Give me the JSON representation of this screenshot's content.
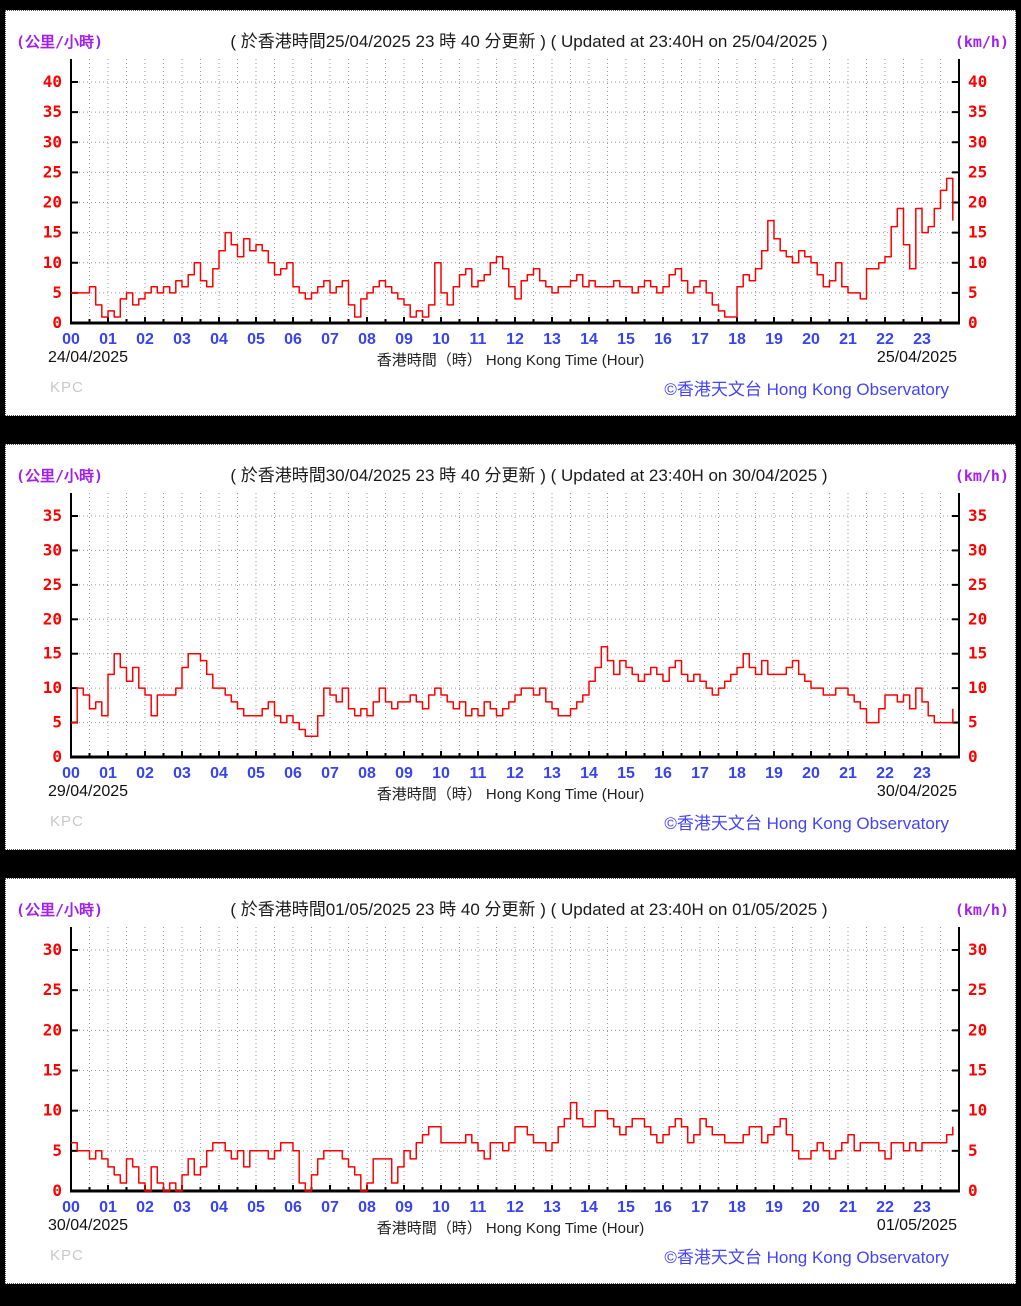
{
  "colors": {
    "background": "#000000",
    "panel": "#ffffff",
    "series_line": "#ff0000",
    "y_tick_labels": "#ff0000",
    "x_tick_labels": "#3743f0",
    "unit_labels": "#a020f0",
    "copyright": "#4343ff",
    "watermark": "#c9c9c9",
    "grid": "#999999"
  },
  "chart_data": [
    {
      "type": "line",
      "unit_left": "(公里/小時)",
      "unit_right": "(km/h)",
      "title": "( 於香港時間25/04/2025 23 時 40 分更新 ) ( Updated at 23:40H on 25/04/2025 )",
      "xlabel": "香港時間（時） Hong Kong Time (Hour)",
      "date_left": "24/04/2025",
      "date_right": "25/04/2025",
      "watermark": "KPC",
      "copyright": "©香港天文台 Hong Kong Observatory",
      "ylim": [
        0,
        40
      ],
      "ytick_step": 5,
      "x_hours": [
        "00",
        "01",
        "02",
        "03",
        "04",
        "05",
        "06",
        "07",
        "08",
        "09",
        "10",
        "11",
        "12",
        "13",
        "14",
        "15",
        "16",
        "17",
        "18",
        "19",
        "20",
        "21",
        "22",
        "23"
      ],
      "interval_minutes": 10,
      "grid": "dotted",
      "values": [
        5,
        5,
        5,
        6,
        3,
        1,
        2,
        1,
        4,
        5,
        3,
        4,
        5,
        6,
        5,
        6,
        5,
        7,
        6,
        8,
        10,
        7,
        6,
        9,
        12,
        15,
        13,
        11,
        14,
        12,
        13,
        12,
        10,
        8,
        9,
        10,
        6,
        5,
        4,
        5,
        6,
        7,
        5,
        6,
        7,
        3,
        1,
        4,
        5,
        6,
        7,
        6,
        5,
        4,
        3,
        1,
        2,
        1,
        3,
        10,
        5,
        3,
        6,
        8,
        9,
        6,
        7,
        8,
        10,
        11,
        9,
        6,
        4,
        7,
        8,
        9,
        7,
        6,
        5,
        6,
        6,
        7,
        8,
        6,
        7,
        6,
        6,
        6,
        7,
        6,
        6,
        5,
        6,
        7,
        6,
        5,
        6,
        8,
        9,
        7,
        5,
        6,
        7,
        5,
        3,
        2,
        1,
        1,
        6,
        8,
        7,
        9,
        12,
        17,
        14,
        12,
        11,
        10,
        12,
        11,
        10,
        8,
        6,
        7,
        10,
        6,
        5,
        5,
        4,
        9,
        9,
        10,
        11,
        16,
        19,
        13,
        9,
        19,
        15,
        16,
        19,
        22,
        24,
        17
      ]
    },
    {
      "type": "line",
      "unit_left": "(公里/小時)",
      "unit_right": "(km/h)",
      "title": "( 於香港時間30/04/2025 23 時 40 分更新 ) ( Updated at 23:40H on 30/04/2025 )",
      "xlabel": "香港時間（時） Hong Kong Time (Hour)",
      "date_left": "29/04/2025",
      "date_right": "30/04/2025",
      "watermark": "KPC",
      "copyright": "©香港天文台 Hong Kong Observatory",
      "ylim": [
        0,
        35
      ],
      "ytick_step": 5,
      "x_hours": [
        "00",
        "01",
        "02",
        "03",
        "04",
        "05",
        "06",
        "07",
        "08",
        "09",
        "10",
        "11",
        "12",
        "13",
        "14",
        "15",
        "16",
        "17",
        "18",
        "19",
        "20",
        "21",
        "22",
        "23"
      ],
      "interval_minutes": 10,
      "grid": "dotted",
      "values": [
        5,
        10,
        9,
        7,
        8,
        6,
        12,
        15,
        13,
        11,
        13,
        10,
        9,
        6,
        9,
        9,
        9,
        10,
        13,
        15,
        15,
        14,
        12,
        10,
        10,
        9,
        8,
        7,
        6,
        6,
        6,
        7,
        8,
        6,
        5,
        6,
        5,
        4,
        3,
        3,
        6,
        10,
        9,
        8,
        10,
        7,
        6,
        7,
        6,
        8,
        10,
        8,
        7,
        8,
        8,
        9,
        8,
        7,
        9,
        10,
        9,
        8,
        7,
        8,
        6,
        7,
        6,
        8,
        7,
        6,
        7,
        8,
        9,
        10,
        10,
        9,
        10,
        8,
        7,
        6,
        6,
        7,
        8,
        9,
        11,
        13,
        16,
        14,
        12,
        14,
        13,
        12,
        11,
        12,
        13,
        12,
        11,
        13,
        14,
        12,
        11,
        12,
        11,
        10,
        9,
        10,
        11,
        12,
        13,
        15,
        13,
        12,
        14,
        12,
        12,
        12,
        13,
        14,
        12,
        11,
        10,
        10,
        9,
        9,
        10,
        10,
        9,
        8,
        7,
        5,
        5,
        7,
        9,
        9,
        8,
        9,
        7,
        10,
        8,
        6,
        5,
        5,
        5,
        7
      ]
    },
    {
      "type": "line",
      "unit_left": "(公里/小時)",
      "unit_right": "(km/h)",
      "title": "( 於香港時間01/05/2025 23 時 40 分更新 ) ( Updated at 23:40H on 01/05/2025 )",
      "xlabel": "香港時間（時） Hong Kong Time (Hour)",
      "date_left": "30/04/2025",
      "date_right": "01/05/2025",
      "watermark": "KPC",
      "copyright": "©香港天文台 Hong Kong Observatory",
      "ylim": [
        0,
        30
      ],
      "ytick_step": 5,
      "x_hours": [
        "00",
        "01",
        "02",
        "03",
        "04",
        "05",
        "06",
        "07",
        "08",
        "09",
        "10",
        "11",
        "12",
        "13",
        "14",
        "15",
        "16",
        "17",
        "18",
        "19",
        "20",
        "21",
        "22",
        "23"
      ],
      "interval_minutes": 10,
      "grid": "dotted",
      "values": [
        6,
        5,
        5,
        4,
        5,
        4,
        3,
        2,
        1,
        4,
        3,
        1,
        0,
        3,
        1,
        0,
        1,
        0,
        2,
        4,
        2,
        3,
        5,
        6,
        6,
        5,
        4,
        5,
        3,
        5,
        5,
        5,
        4,
        5,
        6,
        6,
        5,
        1,
        0,
        2,
        4,
        5,
        5,
        5,
        4,
        3,
        2,
        0,
        1,
        4,
        4,
        4,
        1,
        3,
        5,
        4,
        6,
        7,
        8,
        8,
        6,
        6,
        6,
        6,
        7,
        6,
        5,
        4,
        6,
        6,
        5,
        6,
        8,
        8,
        7,
        6,
        6,
        5,
        6,
        8,
        9,
        11,
        9,
        8,
        8,
        10,
        10,
        9,
        8,
        7,
        8,
        9,
        9,
        8,
        7,
        6,
        7,
        8,
        9,
        8,
        6,
        7,
        9,
        8,
        7,
        7,
        6,
        6,
        6,
        7,
        8,
        8,
        6,
        7,
        8,
        9,
        7,
        5,
        4,
        4,
        5,
        6,
        5,
        4,
        5,
        6,
        7,
        5,
        6,
        6,
        6,
        5,
        4,
        6,
        6,
        5,
        6,
        5,
        6,
        6,
        6,
        6,
        7,
        8
      ]
    }
  ]
}
